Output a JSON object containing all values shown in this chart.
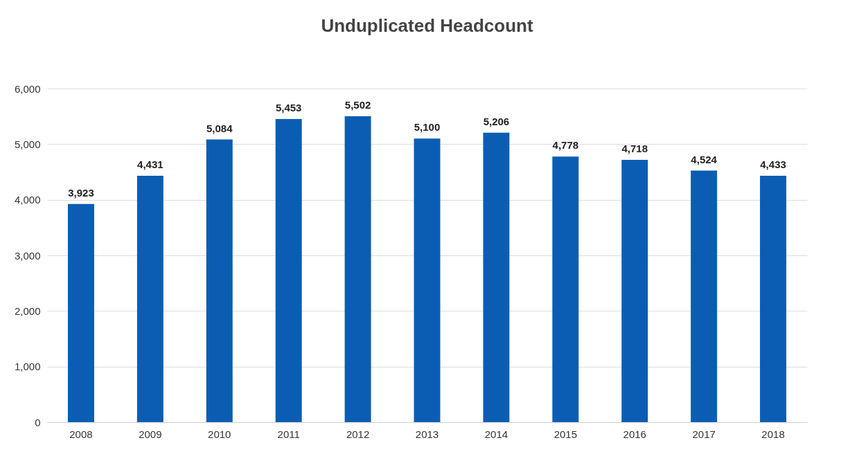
{
  "chart_data": {
    "type": "bar",
    "title": "Unduplicated Headcount",
    "categories": [
      "2008",
      "2009",
      "2010",
      "2011",
      "2012",
      "2013",
      "2014",
      "2015",
      "2016",
      "2017",
      "2018"
    ],
    "values": [
      3923,
      4431,
      5084,
      5453,
      5502,
      5100,
      5206,
      4778,
      4718,
      4524,
      4433
    ],
    "color": "#0b5db3",
    "value_labels": [
      "3,923",
      "4,431",
      "5,084",
      "5,453",
      "5,502",
      "5,100",
      "5,206",
      "4,778",
      "4,718",
      "4,524",
      "4,433"
    ],
    "ylim": [
      0,
      6000
    ],
    "yticks": [
      0,
      {
        "value": 1000,
        "label": "1,000"
      },
      {
        "value": 2000,
        "label": "2,000"
      },
      {
        "value": 3000,
        "label": "3,000"
      },
      {
        "value": 4000,
        "label": "4,000"
      },
      {
        "value": 5000,
        "label": "5,000"
      },
      {
        "value": 6000,
        "label": "6,000"
      }
    ],
    "grid": "y"
  }
}
